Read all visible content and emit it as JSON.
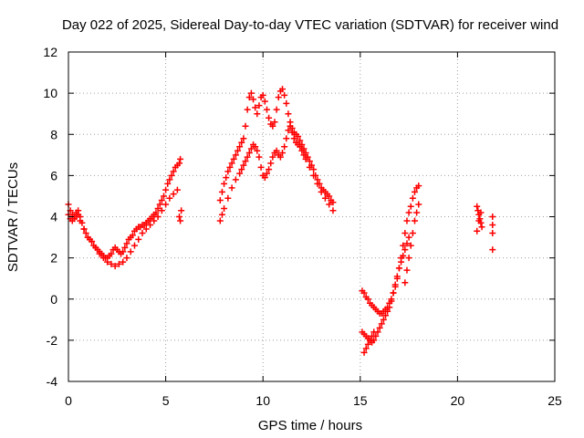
{
  "chart_data": {
    "type": "scatter",
    "title": "Day 022 of 2025, Sidereal Day-to-day VTEC variation (SDTVAR) for receiver wind",
    "xlabel": "GPS time / hours",
    "ylabel": "SDTVAR / TECUs",
    "xlim": [
      0,
      25
    ],
    "ylim": [
      -4,
      12
    ],
    "x_ticks": [
      "0",
      "5",
      "10",
      "15",
      "20",
      "25"
    ],
    "y_ticks": [
      "-4",
      "-2",
      "0",
      "2",
      "4",
      "6",
      "8",
      "10",
      "12"
    ],
    "grid": true,
    "marker": "+",
    "color": "#ff0000",
    "series": [
      {
        "name": "SDTVAR",
        "x": [
          0.0,
          0.1,
          0.2,
          0.3,
          0.4,
          0.5,
          0.6,
          0.7,
          0.8,
          0.9,
          1.0,
          1.1,
          1.2,
          1.3,
          1.4,
          1.5,
          1.6,
          1.7,
          1.8,
          1.9,
          2.0,
          2.1,
          2.2,
          2.3,
          2.4,
          2.5,
          2.6,
          2.7,
          2.8,
          2.9,
          3.0,
          3.1,
          3.2,
          3.3,
          3.4,
          3.5,
          3.6,
          3.7,
          3.8,
          3.9,
          4.0,
          4.1,
          4.2,
          4.3,
          4.4,
          4.5,
          4.6,
          4.7,
          4.8,
          4.9,
          5.0,
          5.1,
          5.2,
          5.3,
          5.4,
          5.5,
          5.6,
          5.7,
          5.75,
          0.0,
          0.1,
          0.2,
          0.3,
          0.4,
          0.5,
          0.6,
          0.8,
          1.0,
          1.2,
          1.4,
          1.6,
          1.8,
          2.0,
          2.2,
          2.4,
          2.6,
          2.8,
          3.0,
          3.2,
          3.4,
          3.6,
          3.8,
          4.0,
          4.2,
          4.4,
          4.6,
          4.8,
          5.0,
          5.2,
          5.4,
          5.6,
          5.7,
          5.75,
          5.8,
          7.8,
          7.9,
          8.0,
          8.1,
          8.2,
          8.3,
          8.4,
          8.5,
          8.6,
          8.7,
          8.8,
          8.9,
          9.0,
          9.1,
          9.2,
          9.3,
          9.4,
          9.5,
          9.6,
          9.7,
          9.8,
          9.9,
          10.0,
          10.1,
          10.2,
          10.3,
          10.4,
          10.5,
          10.6,
          10.7,
          10.8,
          10.9,
          11.0,
          11.1,
          11.2,
          11.3,
          11.4,
          11.5,
          11.6,
          11.7,
          11.8,
          11.9,
          12.0,
          12.1,
          12.2,
          12.3,
          12.4,
          12.5,
          12.6,
          12.7,
          12.8,
          12.9,
          13.0,
          13.1,
          13.2,
          13.3,
          13.4,
          13.5,
          13.6,
          7.8,
          7.9,
          8.0,
          8.2,
          8.4,
          8.6,
          8.8,
          8.9,
          9.0,
          9.1,
          9.2,
          9.3,
          9.4,
          9.5,
          9.6,
          9.7,
          9.8,
          9.9,
          10.0,
          10.1,
          10.2,
          10.3,
          10.4,
          10.5,
          10.6,
          10.7,
          10.8,
          10.9,
          11.0,
          11.1,
          11.2,
          11.3,
          11.4,
          11.5,
          11.6,
          11.7,
          11.8,
          11.9,
          12.0,
          12.1,
          12.2,
          12.4,
          12.6,
          12.8,
          13.0,
          13.2,
          13.4,
          13.6,
          15.1,
          15.2,
          15.3,
          15.4,
          15.5,
          15.6,
          15.7,
          15.8,
          15.9,
          16.0,
          16.1,
          16.2,
          16.3,
          16.4,
          16.5,
          16.6,
          16.7,
          16.8,
          16.9,
          17.0,
          17.1,
          17.2,
          17.3,
          17.4,
          17.5,
          17.6,
          17.7,
          17.8,
          17.9,
          18.0,
          15.1,
          15.2,
          15.3,
          15.4,
          15.5,
          15.6,
          15.7,
          15.8,
          15.9,
          16.0,
          16.1,
          16.2,
          16.3,
          16.4,
          16.5,
          16.6,
          16.7,
          16.8,
          16.9,
          17.0,
          17.1,
          17.2,
          17.3,
          17.4,
          17.5,
          15.2,
          15.3,
          15.4,
          15.5,
          15.6,
          15.7,
          17.3,
          17.4,
          17.5,
          17.6,
          17.7,
          17.8,
          17.9,
          18.0,
          21.0,
          21.05,
          21.1,
          21.15,
          21.2,
          21.25,
          21.0,
          21.1,
          21.2,
          21.8,
          21.8,
          21.8,
          21.8
        ],
        "y": [
          4.6,
          4.3,
          4.1,
          4.0,
          4.2,
          4.3,
          4.0,
          3.7,
          3.4,
          3.2,
          3.0,
          2.9,
          2.8,
          2.6,
          2.5,
          2.4,
          2.3,
          2.2,
          2.1,
          2.0,
          2.0,
          2.1,
          2.2,
          2.4,
          2.5,
          2.4,
          2.3,
          2.2,
          2.3,
          2.5,
          2.7,
          2.9,
          3.0,
          3.1,
          3.3,
          3.4,
          3.5,
          3.5,
          3.6,
          3.6,
          3.7,
          3.8,
          3.9,
          4.0,
          4.1,
          4.2,
          4.4,
          4.6,
          4.8,
          5.0,
          5.3,
          5.6,
          5.8,
          6.0,
          6.2,
          6.4,
          6.5,
          6.6,
          6.8,
          4.1,
          3.9,
          3.8,
          3.9,
          4.0,
          4.1,
          3.8,
          3.4,
          3.0,
          2.8,
          2.5,
          2.2,
          2.0,
          1.8,
          1.7,
          1.6,
          1.7,
          1.8,
          2.0,
          2.3,
          2.6,
          2.9,
          3.2,
          3.4,
          3.6,
          3.8,
          4.0,
          4.3,
          4.6,
          4.9,
          5.1,
          5.3,
          4.0,
          3.8,
          4.3,
          4.8,
          5.2,
          5.6,
          5.9,
          6.2,
          6.4,
          6.6,
          6.8,
          7.0,
          7.2,
          7.4,
          7.6,
          7.8,
          8.4,
          9.2,
          9.8,
          10.0,
          9.7,
          9.3,
          9.0,
          9.4,
          9.8,
          9.9,
          9.6,
          9.2,
          8.8,
          8.5,
          8.4,
          8.6,
          9.2,
          9.8,
          10.1,
          10.2,
          9.9,
          9.5,
          9.0,
          8.6,
          8.3,
          8.1,
          8.0,
          7.9,
          7.7,
          7.5,
          7.3,
          7.1,
          6.9,
          6.7,
          6.5,
          6.3,
          6.0,
          5.8,
          5.6,
          5.4,
          5.3,
          5.2,
          5.1,
          5.0,
          4.8,
          4.7,
          3.8,
          4.1,
          4.4,
          4.9,
          5.4,
          5.8,
          6.1,
          6.3,
          6.5,
          6.7,
          6.9,
          7.1,
          7.3,
          7.5,
          7.4,
          7.2,
          6.9,
          6.4,
          6.0,
          5.9,
          6.1,
          6.3,
          6.6,
          6.9,
          7.1,
          7.2,
          7.0,
          6.9,
          7.1,
          7.4,
          7.8,
          8.2,
          8.4,
          8.1,
          7.8,
          7.6,
          7.5,
          7.4,
          7.2,
          7.0,
          6.8,
          6.4,
          6.0,
          5.6,
          5.2,
          4.9,
          4.6,
          4.3,
          0.4,
          0.3,
          0.1,
          0.0,
          -0.2,
          -0.3,
          -0.4,
          -0.5,
          -0.6,
          -0.7,
          -0.7,
          -0.6,
          -0.5,
          -0.4,
          -0.2,
          0.0,
          0.3,
          0.6,
          1.0,
          1.5,
          2.0,
          2.6,
          3.2,
          3.8,
          4.2,
          4.5,
          4.9,
          5.2,
          5.4,
          5.5,
          -1.6,
          -1.7,
          -1.8,
          -1.9,
          -2.0,
          -2.1,
          -2.0,
          -1.8,
          -1.6,
          -1.4,
          -1.2,
          -1.0,
          -0.8,
          -0.6,
          -0.4,
          -0.1,
          0.3,
          0.7,
          1.1,
          1.5,
          1.8,
          2.1,
          2.4,
          2.7,
          3.0,
          -2.6,
          -2.4,
          -2.2,
          -2.0,
          -1.8,
          -1.6,
          0.8,
          1.4,
          2.0,
          2.6,
          3.2,
          3.8,
          4.2,
          4.6,
          4.5,
          4.3,
          4.1,
          3.9,
          3.7,
          3.5,
          3.3,
          3.8,
          4.2,
          4.0,
          3.6,
          3.2,
          2.4
        ]
      }
    ]
  }
}
